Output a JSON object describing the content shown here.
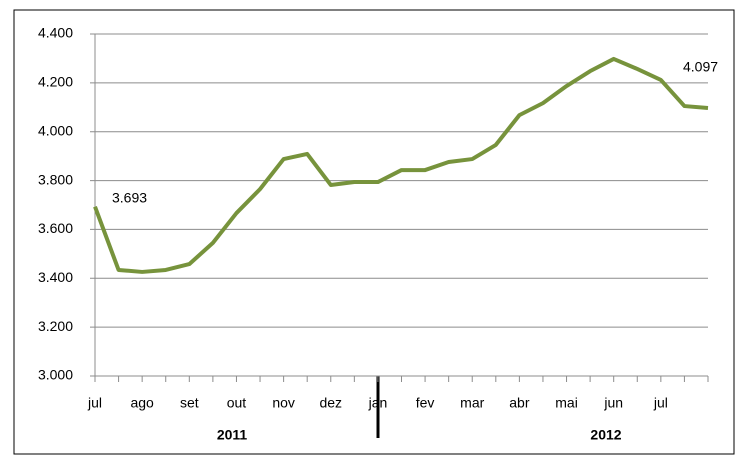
{
  "chart_data": {
    "type": "line",
    "categories": [
      "jul",
      null,
      "ago",
      null,
      "set",
      null,
      "out",
      null,
      "nov",
      null,
      "dez",
      null,
      "jan",
      null,
      "fev",
      null,
      "mar",
      null,
      "abr",
      null,
      "mai",
      null,
      "jun",
      null,
      "jul",
      null,
      null
    ],
    "series": [
      {
        "color": "#77933c",
        "values": [
          3.693,
          3.434,
          3.426,
          3.434,
          3.458,
          3.545,
          3.667,
          3.765,
          3.888,
          3.909,
          3.782,
          3.794,
          3.794,
          3.843,
          3.843,
          3.876,
          3.888,
          3.946,
          4.068,
          4.117,
          4.187,
          4.248,
          4.298,
          4.257,
          4.212,
          4.105,
          4.097
        ],
        "value_labels": [
          "3.693",
          null,
          null,
          null,
          null,
          null,
          null,
          null,
          null,
          null,
          null,
          null,
          null,
          null,
          null,
          null,
          null,
          null,
          null,
          null,
          null,
          null,
          null,
          null,
          null,
          null,
          "4.097"
        ]
      }
    ],
    "ylim": [
      3.0,
      4.4
    ],
    "yticks": [
      {
        "value": 3.0,
        "label": "3.000"
      },
      {
        "value": 3.2,
        "label": "3.200"
      },
      {
        "value": 3.4,
        "label": "3.400"
      },
      {
        "value": 3.6,
        "label": "3.600"
      },
      {
        "value": 3.8,
        "label": "3.800"
      },
      {
        "value": 4.0,
        "label": "4.000"
      },
      {
        "value": 4.2,
        "label": "4.200"
      },
      {
        "value": 4.4,
        "label": "4.400"
      }
    ],
    "grid": true,
    "annotations": [
      "2011",
      "2012"
    ]
  }
}
